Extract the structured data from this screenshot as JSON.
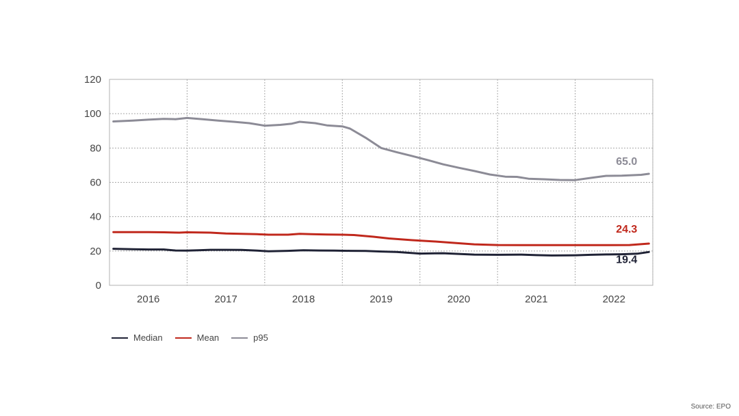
{
  "chart_data": {
    "type": "line",
    "y_ticks": [
      "0",
      "20",
      "40",
      "60",
      "80",
      "100",
      "120"
    ],
    "ylim": [
      0,
      120
    ],
    "x_labels": [
      "2016",
      "2017",
      "2018",
      "2019",
      "2020",
      "2021",
      "2022"
    ],
    "xlim": [
      2015.5,
      2022.5
    ],
    "grid": true,
    "legend_position": "bottom-left",
    "series": [
      {
        "name": "Median",
        "color": "#1f2235",
        "end_label": "19.4",
        "points": [
          [
            2015.55,
            21.3
          ],
          [
            2015.8,
            21.0
          ],
          [
            2016.0,
            20.9
          ],
          [
            2016.2,
            20.9
          ],
          [
            2016.35,
            20.3
          ],
          [
            2016.5,
            20.2
          ],
          [
            2016.65,
            20.4
          ],
          [
            2016.8,
            20.7
          ],
          [
            2017.0,
            20.7
          ],
          [
            2017.2,
            20.6
          ],
          [
            2017.4,
            20.2
          ],
          [
            2017.55,
            19.8
          ],
          [
            2017.8,
            20.1
          ],
          [
            2018.0,
            20.4
          ],
          [
            2018.2,
            20.3
          ],
          [
            2018.4,
            20.2
          ],
          [
            2018.6,
            20.1
          ],
          [
            2018.8,
            20.0
          ],
          [
            2019.0,
            19.7
          ],
          [
            2019.2,
            19.4
          ],
          [
            2019.5,
            18.5
          ],
          [
            2019.8,
            18.7
          ],
          [
            2020.0,
            18.3
          ],
          [
            2020.2,
            17.9
          ],
          [
            2020.5,
            17.8
          ],
          [
            2020.8,
            17.9
          ],
          [
            2021.0,
            17.6
          ],
          [
            2021.2,
            17.4
          ],
          [
            2021.5,
            17.5
          ],
          [
            2021.7,
            17.8
          ],
          [
            2021.9,
            18.0
          ],
          [
            2022.1,
            18.1
          ],
          [
            2022.3,
            18.4
          ],
          [
            2022.45,
            19.4
          ]
        ]
      },
      {
        "name": "Mean",
        "color": "#c0281c",
        "end_label": "24.3",
        "points": [
          [
            2015.55,
            31.0
          ],
          [
            2015.8,
            31.0
          ],
          [
            2016.0,
            31.0
          ],
          [
            2016.2,
            30.9
          ],
          [
            2016.4,
            30.7
          ],
          [
            2016.5,
            30.9
          ],
          [
            2016.65,
            30.8
          ],
          [
            2016.8,
            30.7
          ],
          [
            2017.0,
            30.2
          ],
          [
            2017.2,
            30.0
          ],
          [
            2017.4,
            29.8
          ],
          [
            2017.55,
            29.5
          ],
          [
            2017.8,
            29.5
          ],
          [
            2017.95,
            30.0
          ],
          [
            2018.1,
            29.8
          ],
          [
            2018.3,
            29.6
          ],
          [
            2018.5,
            29.5
          ],
          [
            2018.65,
            29.3
          ],
          [
            2018.9,
            28.3
          ],
          [
            2019.1,
            27.3
          ],
          [
            2019.4,
            26.3
          ],
          [
            2019.7,
            25.5
          ],
          [
            2020.0,
            24.5
          ],
          [
            2020.2,
            23.9
          ],
          [
            2020.5,
            23.5
          ],
          [
            2020.8,
            23.4
          ],
          [
            2021.0,
            23.4
          ],
          [
            2021.3,
            23.4
          ],
          [
            2021.6,
            23.4
          ],
          [
            2021.9,
            23.4
          ],
          [
            2022.2,
            23.5
          ],
          [
            2022.45,
            24.3
          ]
        ]
      },
      {
        "name": "p95",
        "color": "#8c8b96",
        "end_label": "65.0",
        "points": [
          [
            2015.55,
            95.5
          ],
          [
            2015.8,
            96.0
          ],
          [
            2016.0,
            96.5
          ],
          [
            2016.2,
            97.0
          ],
          [
            2016.35,
            96.8
          ],
          [
            2016.5,
            97.5
          ],
          [
            2016.7,
            96.8
          ],
          [
            2016.9,
            96.0
          ],
          [
            2017.1,
            95.3
          ],
          [
            2017.3,
            94.5
          ],
          [
            2017.5,
            93.0
          ],
          [
            2017.7,
            93.5
          ],
          [
            2017.85,
            94.2
          ],
          [
            2017.95,
            95.3
          ],
          [
            2018.15,
            94.5
          ],
          [
            2018.3,
            93.2
          ],
          [
            2018.5,
            92.6
          ],
          [
            2018.6,
            91.3
          ],
          [
            2018.8,
            86.0
          ],
          [
            2019.0,
            80.0
          ],
          [
            2019.2,
            77.6
          ],
          [
            2019.4,
            75.3
          ],
          [
            2019.6,
            73.0
          ],
          [
            2019.8,
            70.5
          ],
          [
            2020.0,
            68.5
          ],
          [
            2020.2,
            66.6
          ],
          [
            2020.4,
            64.6
          ],
          [
            2020.6,
            63.3
          ],
          [
            2020.75,
            63.2
          ],
          [
            2020.9,
            62.1
          ],
          [
            2021.1,
            61.8
          ],
          [
            2021.3,
            61.4
          ],
          [
            2021.5,
            61.3
          ],
          [
            2021.7,
            62.6
          ],
          [
            2021.9,
            63.8
          ],
          [
            2022.1,
            63.9
          ],
          [
            2022.25,
            64.2
          ],
          [
            2022.35,
            64.4
          ],
          [
            2022.45,
            65.0
          ]
        ]
      }
    ]
  },
  "legend": [
    {
      "label": "Median",
      "color": "#1f2235"
    },
    {
      "label": "Mean",
      "color": "#c0281c"
    },
    {
      "label": "p95",
      "color": "#8c8b96"
    }
  ],
  "source": "Source: EPO"
}
